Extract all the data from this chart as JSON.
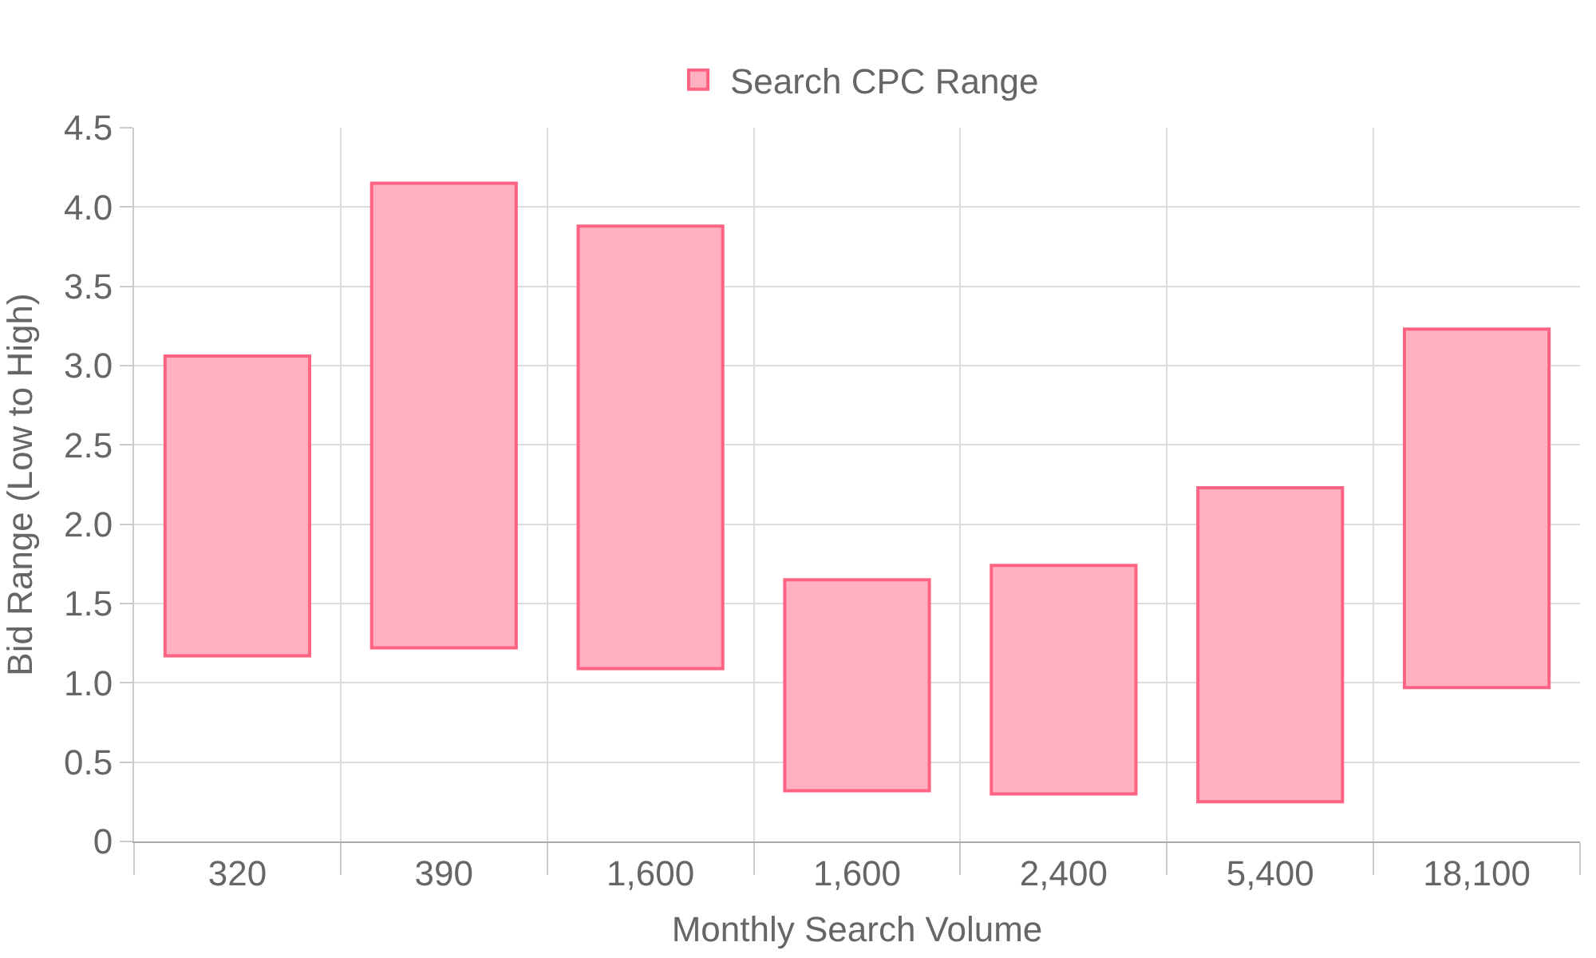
{
  "chart_data": {
    "type": "bar",
    "xlabel": "Monthly Search Volume",
    "ylabel": "Bid Range (Low to High)",
    "categories": [
      "320",
      "390",
      "1,600",
      "1,600",
      "2,400",
      "5,400",
      "18,100"
    ],
    "series": [
      {
        "name": "Search CPC Range",
        "color": "#ffb1c1",
        "values": [
          1.89,
          2.93,
          2.79,
          1.33,
          1.44,
          1.98,
          2.26
        ],
        "base": [
          1.17,
          1.22,
          1.09,
          0.32,
          0.3,
          0.25,
          0.97
        ]
      }
    ],
    "ylim": [
      0,
      4.5
    ],
    "yticks": [
      0,
      0.5,
      {
        "value": 1,
        "label": "1.0"
      },
      1.5,
      {
        "value": 2,
        "label": "2.0"
      },
      2.5,
      {
        "value": 3,
        "label": "3.0"
      },
      3.5,
      {
        "value": 4,
        "label": "4.0"
      },
      4.5
    ],
    "grid": true,
    "legend": "top"
  }
}
